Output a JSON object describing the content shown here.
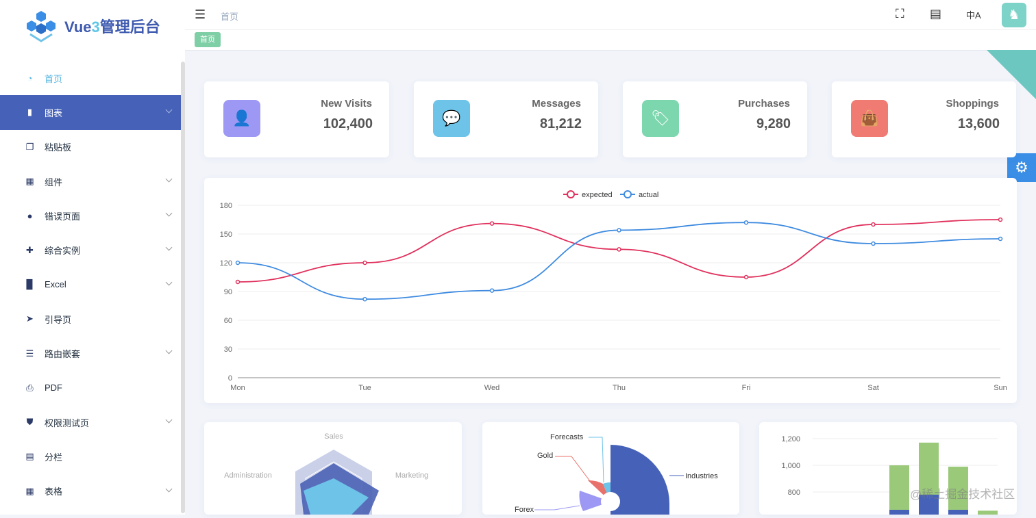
{
  "app": {
    "title_prefix": "Vue",
    "title_num": "3",
    "title_suffix": "管理后台"
  },
  "sidebar": {
    "items": [
      {
        "label": "首页",
        "icon": "dashboard-icon",
        "glyph": "◔"
      },
      {
        "label": "图表",
        "icon": "chart-icon",
        "glyph": "▮"
      },
      {
        "label": "粘贴板",
        "icon": "clipboard-icon",
        "glyph": "❐"
      },
      {
        "label": "组件",
        "icon": "component-icon",
        "glyph": "▦"
      },
      {
        "label": "错误页面",
        "icon": "404-icon",
        "glyph": "●"
      },
      {
        "label": "综合实例",
        "icon": "example-icon",
        "glyph": "✚"
      },
      {
        "label": "Excel",
        "icon": "excel-icon",
        "glyph": "▉"
      },
      {
        "label": "引导页",
        "icon": "guide-icon",
        "glyph": "➤"
      },
      {
        "label": "路由嵌套",
        "icon": "nested-icon",
        "glyph": "☰"
      },
      {
        "label": "PDF",
        "icon": "pdf-icon",
        "glyph": "⎙"
      },
      {
        "label": "权限测试页",
        "icon": "lock-icon",
        "glyph": "⛊"
      },
      {
        "label": "分栏",
        "icon": "columns-icon",
        "glyph": "▤"
      },
      {
        "label": "表格",
        "icon": "table-icon",
        "glyph": "▦"
      }
    ]
  },
  "header": {
    "breadcrumb": "首页",
    "tag": "首页",
    "avatar_glyph": "♞"
  },
  "stats": [
    {
      "label": "New Visits",
      "value": "102,400",
      "color": "#9c98f3",
      "glyph": "👤"
    },
    {
      "label": "Messages",
      "value": "81,212",
      "color": "#6ec3e8",
      "glyph": "💬"
    },
    {
      "label": "Purchases",
      "value": "9,280",
      "color": "#7dd7ae",
      "glyph": "🏷"
    },
    {
      "label": "Shoppings",
      "value": "13,600",
      "color": "#ef7b72",
      "glyph": "👜"
    }
  ],
  "chart_data": [
    {
      "type": "line",
      "categories": [
        "Mon",
        "Tue",
        "Wed",
        "Thu",
        "Fri",
        "Sat",
        "Sun"
      ],
      "ylim": [
        0,
        180
      ],
      "yticks": [
        0,
        30,
        60,
        90,
        120,
        150,
        180
      ],
      "series": [
        {
          "name": "expected",
          "color": "#e0305c",
          "values": [
            100,
            120,
            161,
            134,
            105,
            160,
            165
          ]
        },
        {
          "name": "actual",
          "color": "#3f8be0",
          "values": [
            120,
            82,
            91,
            154,
            162,
            140,
            145
          ]
        }
      ],
      "legend": "top-center"
    },
    {
      "type": "radar",
      "indicators": [
        "Sales",
        "Administration",
        "Marketing"
      ]
    },
    {
      "type": "pie",
      "labels": [
        "Industries",
        "Forecasts",
        "Gold",
        "Forex"
      ]
    },
    {
      "type": "bar",
      "yticks": [
        800,
        1000,
        1200
      ],
      "tick_labels": [
        "800",
        "1,000",
        "1,200"
      ],
      "values": [
        1000,
        1170,
        990,
        660
      ]
    }
  ],
  "watermark": "@稀土掘金技术社区"
}
